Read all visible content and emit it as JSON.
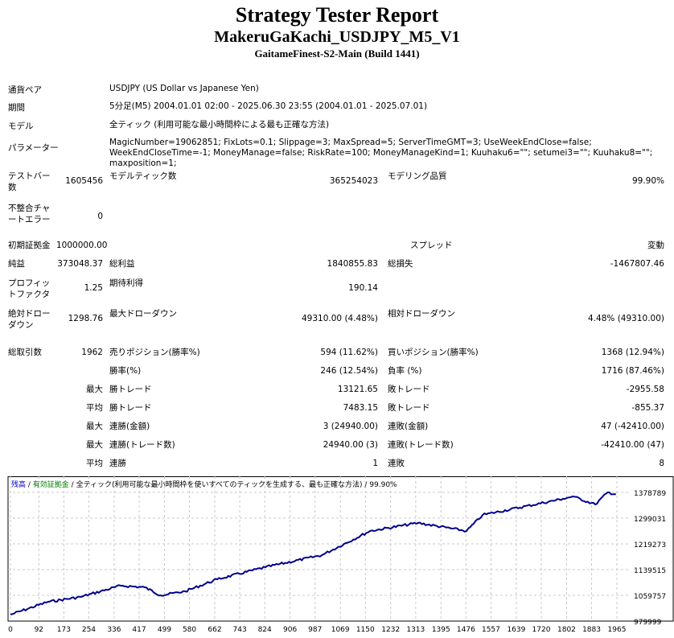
{
  "header": {
    "title": "Strategy Tester Report",
    "ea": "MakeruGaKachi_USDJPY_M5_V1",
    "server": "GaitameFinest-S2-Main (Build 1441)"
  },
  "info": [
    {
      "label": "通貨ペア",
      "value": "USDJPY (US Dollar vs Japanese Yen)"
    },
    {
      "label": "期間",
      "value": "5分足(M5) 2004.01.01 02:00 - 2025.06.30 23:55 (2004.01.01 - 2025.07.01)"
    },
    {
      "label": "モデル",
      "value": "全ティック (利用可能な最小時間枠による最も正確な方法)"
    },
    {
      "label": "パラメーター",
      "value": "MagicNumber=19062851; FixLots=0.1; Slippage=3; MaxSpread=5; ServerTimeGMT=3; UseWeekEndClose=false; WeekEndCloseTime=-1; MoneyManage=false; RiskRate=100; MoneyManageKind=1; Kuuhaku6=\"\"; setumei3=\"\"; Kuuhaku8=\"\"; maxposition=1;"
    }
  ],
  "stats": {
    "bars_label": "テストバー数",
    "bars": "1605456",
    "ticks_label": "モデルティック数",
    "ticks": "365254023",
    "quality_label": "モデリング品質",
    "quality": "99.90%",
    "errors_label": "不整合チャートエラー",
    "errors": "0",
    "deposit_label": "初期証拠金",
    "deposit": "1000000.00",
    "spread_label": "スプレッド",
    "spread": "変動",
    "net_label": "純益",
    "net": "373048.37",
    "gross_profit_label": "総利益",
    "gross_profit": "1840855.83",
    "gross_loss_label": "総損失",
    "gross_loss": "-1467807.46",
    "pf_label": "プロフィットファクタ",
    "pf": "1.25",
    "expected_label": "期待利得",
    "expected": "190.14",
    "abs_dd_label": "絶対ドローダウン",
    "abs_dd": "1298.76",
    "max_dd_label": "最大ドローダウン",
    "max_dd": "49310.00 (4.48%)",
    "rel_dd_label": "相対ドローダウン",
    "rel_dd": "4.48% (49310.00)",
    "trades_label": "総取引数",
    "trades": "1962",
    "short_label": "売りポジション(勝率%)",
    "short": "594 (11.62%)",
    "long_label": "買いポジション(勝率%)",
    "long": "1368 (12.94%)",
    "win_label": "勝率(%)",
    "win": "246 (12.54%)",
    "loss_label": "負率 (%)",
    "loss": "1716 (87.46%)",
    "max": "最大",
    "avg": "平均",
    "largest_win_label": "勝トレード",
    "largest_win": "13121.65",
    "largest_loss_label": "敗トレード",
    "largest_loss": "-2955.58",
    "avg_win_label": "勝トレード",
    "avg_win": "7483.15",
    "avg_loss_label": "敗トレード",
    "avg_loss": "-855.37",
    "cons_win_money_label": "連勝(金額)",
    "cons_win_money": "3 (24940.00)",
    "cons_loss_money_label": "連敗(金額)",
    "cons_loss_money": "47 (-42410.00)",
    "cons_win_count_label": "連勝(トレード数)",
    "cons_win_count": "24940.00 (3)",
    "cons_loss_count_label": "連敗(トレード数)",
    "cons_loss_count": "-42410.00 (47)",
    "avg_cons_win_label": "連勝",
    "avg_cons_win": "1",
    "avg_cons_loss_label": "連敗",
    "avg_cons_loss": "8"
  },
  "chart_data": {
    "type": "line",
    "legend": {
      "balance": "残高",
      "sep": " / ",
      "equity": "有効証拠金",
      "model": "全ティック(利用可能な最小時間枠を使いすべてのティックを生成する、最も正確な方法)",
      "quality": "99.90%"
    },
    "colors": {
      "line": "#00008b",
      "balance_label": "#0000c0",
      "equity_label": "#008000",
      "grid": "#c8c8c8"
    },
    "xticks": [
      0,
      92,
      173,
      254,
      336,
      417,
      499,
      580,
      662,
      743,
      824,
      906,
      987,
      1069,
      1150,
      1232,
      1313,
      1395,
      1476,
      1557,
      1639,
      1720,
      1802,
      1883,
      1965
    ],
    "yticks": [
      979999,
      1059757,
      1139515,
      1219273,
      1299031,
      1378789
    ],
    "xlim": [
      0,
      2040
    ],
    "ylim": [
      979999,
      1378789
    ],
    "grid": true,
    "x": [
      0,
      122,
      227,
      357,
      435,
      487,
      566,
      670,
      826,
      1009,
      1165,
      1321,
      1478,
      1530,
      1790,
      1822,
      1895,
      1935,
      1962
    ],
    "y": [
      1000000,
      1039800,
      1054760,
      1089650,
      1084660,
      1059740,
      1072200,
      1109580,
      1146960,
      1184340,
      1259100,
      1284020,
      1259100,
      1308940,
      1358780,
      1366260,
      1341340,
      1378720,
      1373048
    ]
  }
}
